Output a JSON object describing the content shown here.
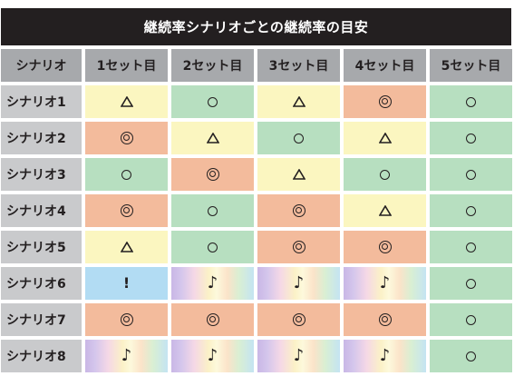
{
  "title": "継続率シナリオごとの継続率の目安",
  "header": {
    "corner": "シナリオ",
    "columns": [
      "1セット目",
      "2セット目",
      "3セット目",
      "4セット目",
      "5セット目"
    ]
  },
  "rows": [
    {
      "label": "シナリオ1",
      "cells": [
        {
          "symbol": "triangle",
          "text": "△",
          "color": "yellow"
        },
        {
          "symbol": "circle",
          "text": "○",
          "color": "green"
        },
        {
          "symbol": "triangle",
          "text": "△",
          "color": "yellow"
        },
        {
          "symbol": "double-circle",
          "text": "◎",
          "color": "orange"
        },
        {
          "symbol": "circle",
          "text": "○",
          "color": "green"
        }
      ]
    },
    {
      "label": "シナリオ2",
      "cells": [
        {
          "symbol": "double-circle",
          "text": "◎",
          "color": "orange"
        },
        {
          "symbol": "triangle",
          "text": "△",
          "color": "yellow"
        },
        {
          "symbol": "circle",
          "text": "○",
          "color": "green"
        },
        {
          "symbol": "triangle",
          "text": "△",
          "color": "yellow"
        },
        {
          "symbol": "circle",
          "text": "○",
          "color": "green"
        }
      ]
    },
    {
      "label": "シナリオ3",
      "cells": [
        {
          "symbol": "circle",
          "text": "○",
          "color": "green"
        },
        {
          "symbol": "double-circle",
          "text": "◎",
          "color": "orange"
        },
        {
          "symbol": "triangle",
          "text": "△",
          "color": "yellow"
        },
        {
          "symbol": "circle",
          "text": "○",
          "color": "green"
        },
        {
          "symbol": "circle",
          "text": "○",
          "color": "green"
        }
      ]
    },
    {
      "label": "シナリオ4",
      "cells": [
        {
          "symbol": "double-circle",
          "text": "◎",
          "color": "orange"
        },
        {
          "symbol": "circle",
          "text": "○",
          "color": "green"
        },
        {
          "symbol": "double-circle",
          "text": "◎",
          "color": "orange"
        },
        {
          "symbol": "triangle",
          "text": "△",
          "color": "yellow"
        },
        {
          "symbol": "circle",
          "text": "○",
          "color": "green"
        }
      ]
    },
    {
      "label": "シナリオ5",
      "cells": [
        {
          "symbol": "triangle",
          "text": "△",
          "color": "yellow"
        },
        {
          "symbol": "circle",
          "text": "○",
          "color": "green"
        },
        {
          "symbol": "double-circle",
          "text": "◎",
          "color": "orange"
        },
        {
          "symbol": "double-circle",
          "text": "◎",
          "color": "orange"
        },
        {
          "symbol": "circle",
          "text": "○",
          "color": "green"
        }
      ]
    },
    {
      "label": "シナリオ6",
      "cells": [
        {
          "symbol": "exclamation",
          "text": "!",
          "color": "blue"
        },
        {
          "symbol": "note",
          "text": "♪",
          "color": "rainbow"
        },
        {
          "symbol": "note",
          "text": "♪",
          "color": "rainbow"
        },
        {
          "symbol": "note",
          "text": "♪",
          "color": "rainbow"
        },
        {
          "symbol": "circle",
          "text": "○",
          "color": "green"
        }
      ]
    },
    {
      "label": "シナリオ7",
      "cells": [
        {
          "symbol": "double-circle",
          "text": "◎",
          "color": "orange"
        },
        {
          "symbol": "double-circle",
          "text": "◎",
          "color": "orange"
        },
        {
          "symbol": "double-circle",
          "text": "◎",
          "color": "orange"
        },
        {
          "symbol": "double-circle",
          "text": "◎",
          "color": "orange"
        },
        {
          "symbol": "circle",
          "text": "○",
          "color": "green"
        }
      ]
    },
    {
      "label": "シナリオ8",
      "cells": [
        {
          "symbol": "note",
          "text": "♪",
          "color": "rainbow"
        },
        {
          "symbol": "note",
          "text": "♪",
          "color": "rainbow"
        },
        {
          "symbol": "note",
          "text": "♪",
          "color": "rainbow"
        },
        {
          "symbol": "note",
          "text": "♪",
          "color": "rainbow"
        },
        {
          "symbol": "circle",
          "text": "○",
          "color": "green"
        }
      ]
    }
  ],
  "colors": {
    "title_bg": "#231f20",
    "header_bg": "#a7a9ac",
    "row_label_bg": "#c9cacc",
    "yellow": "#fbf6c0",
    "green": "#b7dfc0",
    "orange": "#f3bb9c",
    "blue": "#b2dcf3"
  }
}
